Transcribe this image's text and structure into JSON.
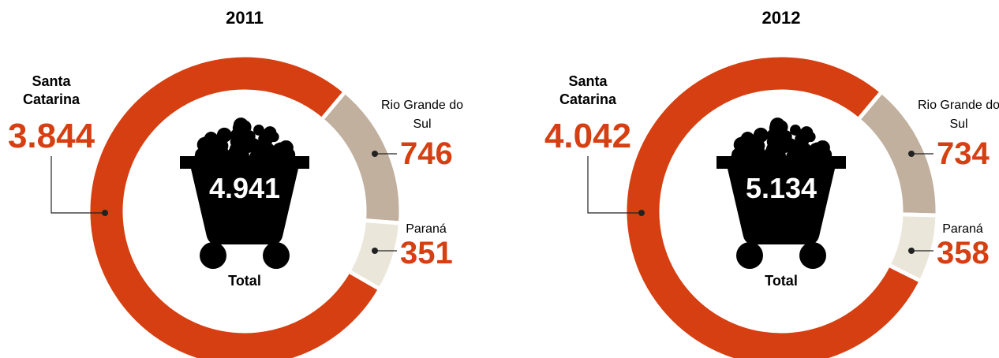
{
  "chart_data": [
    {
      "type": "donut",
      "title": "2011",
      "categories": [
        "Santa Catarina",
        "Rio Grande do Sul",
        "Paraná"
      ],
      "values": [
        3844,
        746,
        351
      ],
      "value_labels": [
        "3.844",
        "746",
        "351"
      ],
      "colors": [
        "#d63f11",
        "#c2b09f",
        "#ebe6da"
      ],
      "total": 4941,
      "total_label": "4.941",
      "total_caption": "Total"
    },
    {
      "type": "donut",
      "title": "2012",
      "categories": [
        "Santa Catarina",
        "Rio Grande do Sul",
        "Paraná"
      ],
      "values": [
        4042,
        734,
        358
      ],
      "value_labels": [
        "4.042",
        "734",
        "358"
      ],
      "colors": [
        "#d63f11",
        "#c2b09f",
        "#ebe6da"
      ],
      "total": 5134,
      "total_label": "5.134",
      "total_caption": "Total"
    }
  ]
}
